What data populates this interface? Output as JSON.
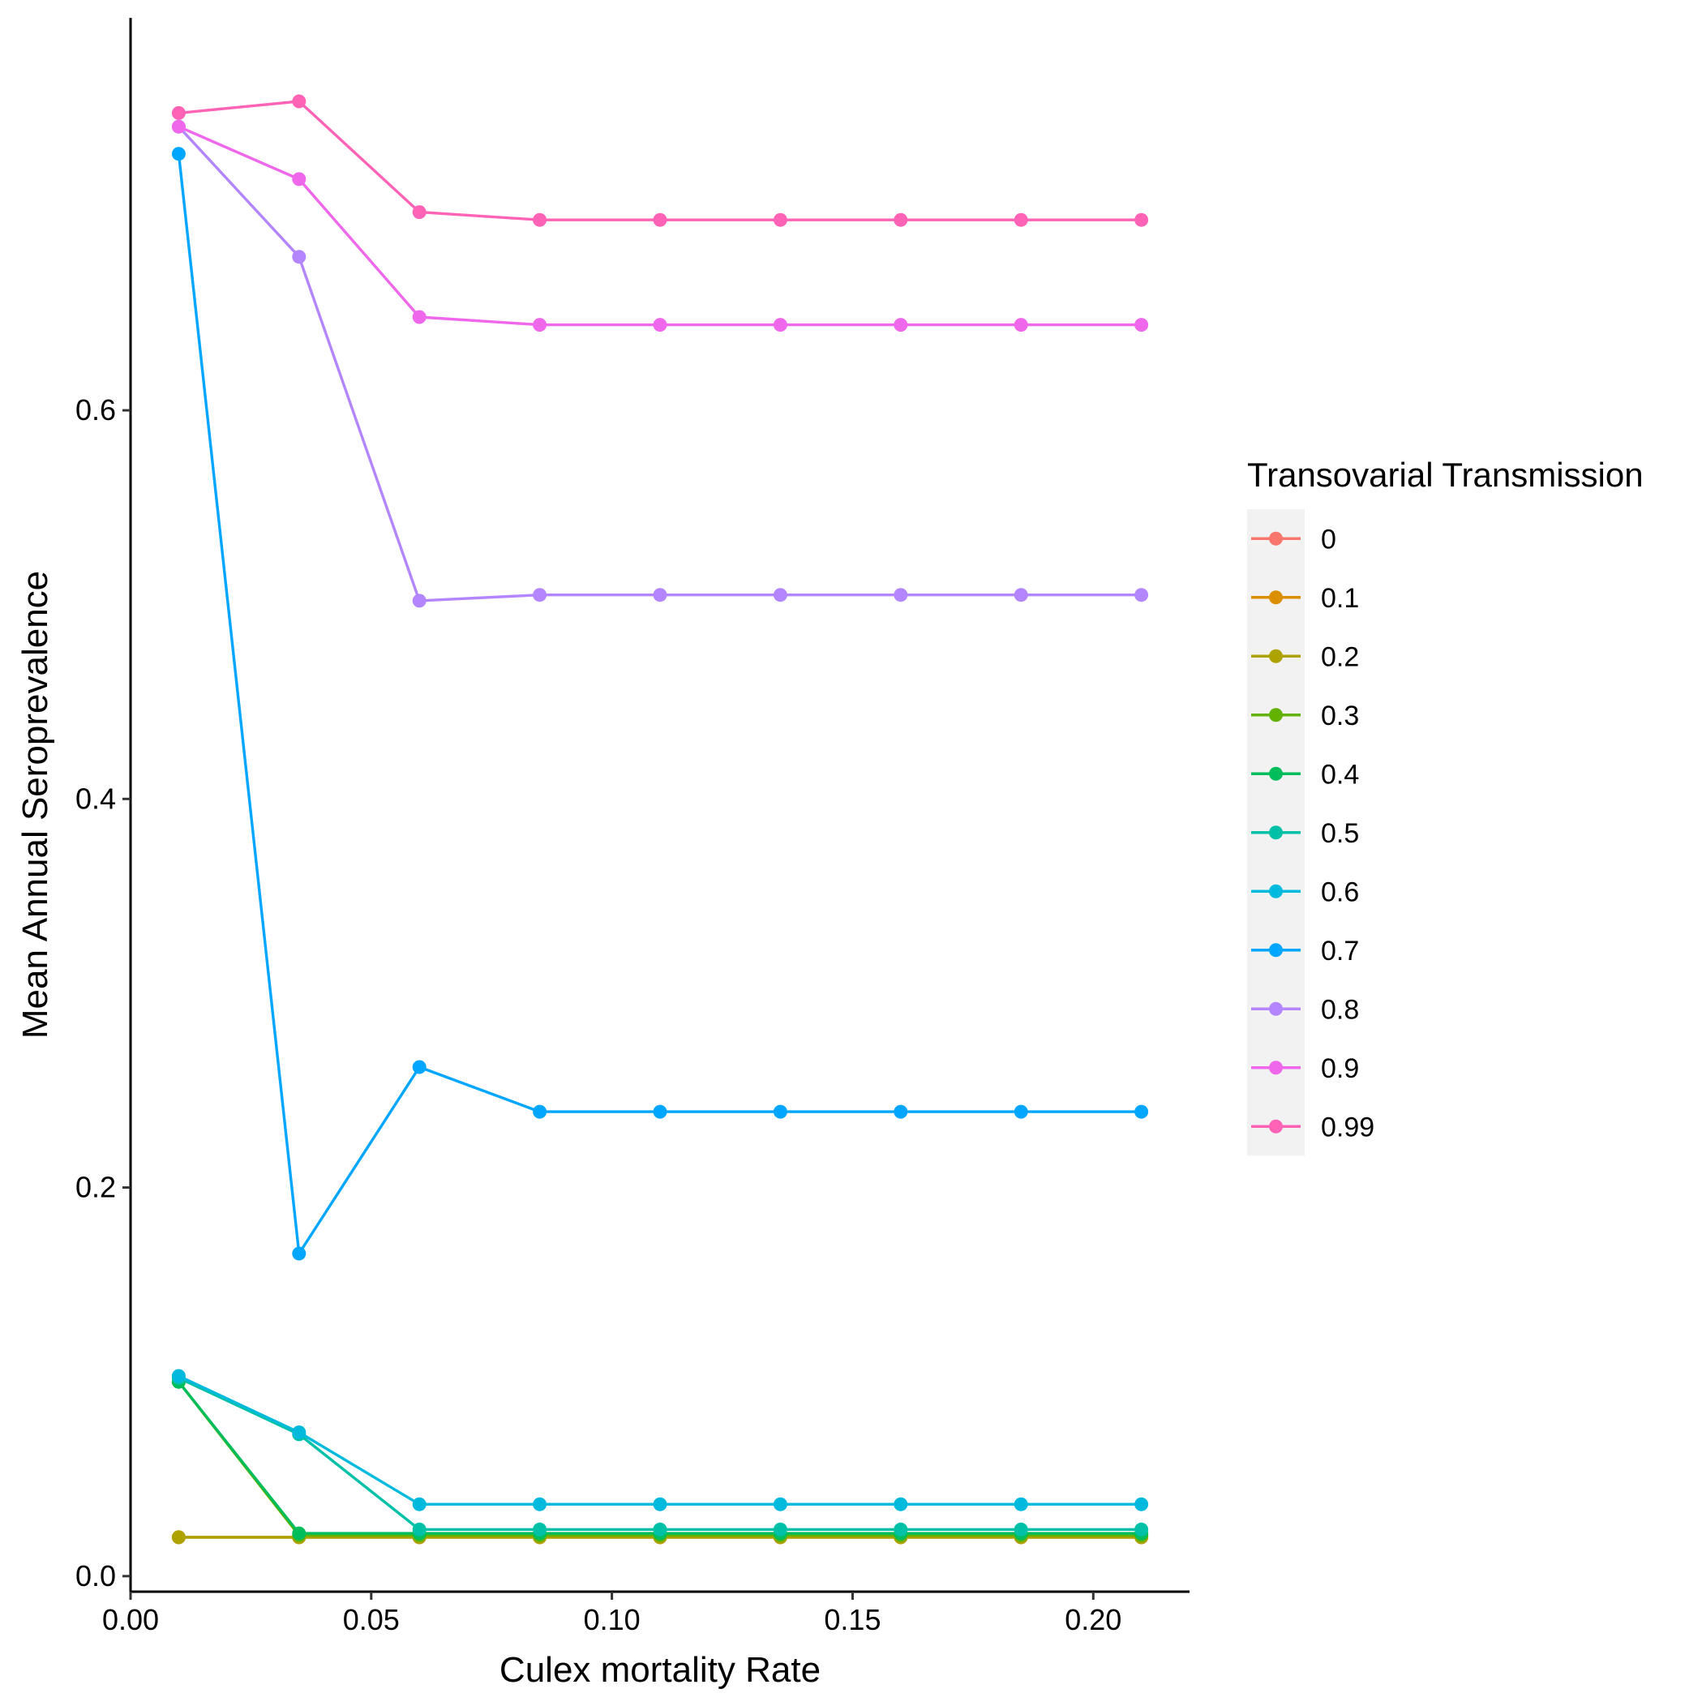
{
  "chart_data": {
    "type": "line",
    "title": "",
    "xlabel": "Culex mortality Rate",
    "ylabel": "Mean Annual Seroprevalence",
    "xlim": [
      0.0,
      0.22
    ],
    "ylim": [
      -0.008,
      0.802
    ],
    "xticks": [
      0.0,
      0.05,
      0.1,
      0.15,
      0.2
    ],
    "xtick_labels": [
      "0.00",
      "0.05",
      "0.10",
      "0.15",
      "0.20"
    ],
    "yticks": [
      0.0,
      0.2,
      0.4,
      0.6
    ],
    "ytick_labels": [
      "0.0",
      "0.2",
      "0.4",
      "0.6"
    ],
    "grid": false,
    "legend": {
      "title": "Transovarial Transmission",
      "position": "right"
    },
    "x": [
      0.01,
      0.035,
      0.06,
      0.085,
      0.11,
      0.135,
      0.16,
      0.185,
      0.21
    ],
    "series": [
      {
        "name": "0",
        "color": "#F8766D",
        "values": [
          0.02,
          0.02,
          0.02,
          0.02,
          0.02,
          0.02,
          0.02,
          0.02,
          0.02
        ]
      },
      {
        "name": "0.1",
        "color": "#DB8E00",
        "values": [
          0.02,
          0.02,
          0.02,
          0.02,
          0.02,
          0.02,
          0.02,
          0.02,
          0.02
        ]
      },
      {
        "name": "0.2",
        "color": "#AEA200",
        "values": [
          0.02,
          0.02,
          0.02,
          0.02,
          0.02,
          0.02,
          0.02,
          0.02,
          0.02
        ]
      },
      {
        "name": "0.3",
        "color": "#64B200",
        "values": [
          0.1,
          0.021,
          0.021,
          0.021,
          0.021,
          0.021,
          0.021,
          0.021,
          0.021
        ]
      },
      {
        "name": "0.4",
        "color": "#00BD5C",
        "values": [
          0.1,
          0.022,
          0.022,
          0.022,
          0.022,
          0.022,
          0.022,
          0.022,
          0.022
        ]
      },
      {
        "name": "0.5",
        "color": "#00C1A7",
        "values": [
          0.102,
          0.073,
          0.024,
          0.024,
          0.024,
          0.024,
          0.024,
          0.024,
          0.024
        ]
      },
      {
        "name": "0.6",
        "color": "#00BADE",
        "values": [
          0.103,
          0.074,
          0.037,
          0.037,
          0.037,
          0.037,
          0.037,
          0.037,
          0.037
        ]
      },
      {
        "name": "0.7",
        "color": "#00A6FF",
        "values": [
          0.732,
          0.166,
          0.262,
          0.239,
          0.239,
          0.239,
          0.239,
          0.239,
          0.239
        ]
      },
      {
        "name": "0.8",
        "color": "#B385FF",
        "values": [
          0.746,
          0.679,
          0.502,
          0.505,
          0.505,
          0.505,
          0.505,
          0.505,
          0.505
        ]
      },
      {
        "name": "0.9",
        "color": "#EF67EB",
        "values": [
          0.746,
          0.719,
          0.648,
          0.644,
          0.644,
          0.644,
          0.644,
          0.644,
          0.644
        ]
      },
      {
        "name": "0.99",
        "color": "#FF63B6",
        "values": [
          0.753,
          0.759,
          0.702,
          0.698,
          0.698,
          0.698,
          0.698,
          0.698,
          0.698
        ]
      }
    ]
  }
}
